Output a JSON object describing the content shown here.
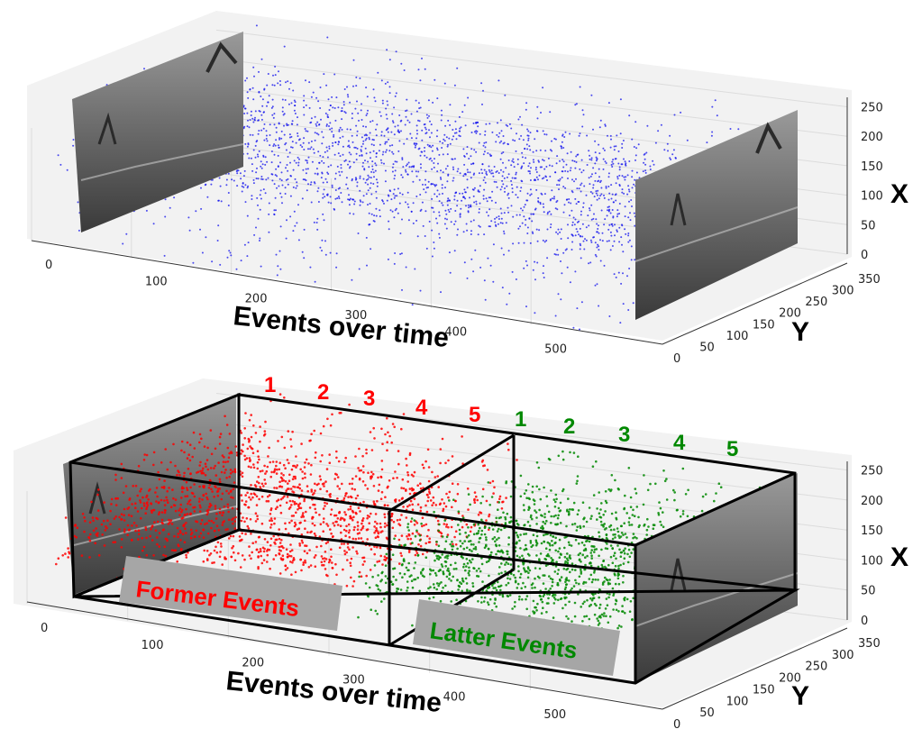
{
  "chart_data": [
    {
      "type": "scatter",
      "projection": "3d",
      "xlabel": "Events over time",
      "ylabel": "Y",
      "zlabel": "X",
      "x_ticks": [
        0,
        100,
        200,
        300,
        400,
        500
      ],
      "y_ticks": [
        0,
        50,
        100,
        150,
        200,
        250,
        300,
        350
      ],
      "z_ticks": [
        0,
        50,
        100,
        150,
        200,
        250
      ],
      "xlim": [
        0,
        600
      ],
      "ylim": [
        0,
        350
      ],
      "zlim": [
        0,
        260
      ],
      "series": [
        {
          "color": "#1010ee",
          "x_range": [
            0,
            560
          ]
        }
      ],
      "frames": [
        "start-frame",
        "end-frame"
      ]
    },
    {
      "type": "scatter",
      "projection": "3d",
      "xlabel": "Events over time",
      "ylabel": "Y",
      "zlabel": "X",
      "x_ticks": [
        0,
        100,
        200,
        300,
        400,
        500
      ],
      "y_ticks": [
        0,
        50,
        100,
        150,
        200,
        250,
        300,
        350
      ],
      "z_ticks": [
        0,
        50,
        100,
        150,
        200,
        250
      ],
      "xlim": [
        0,
        600
      ],
      "ylim": [
        0,
        350
      ],
      "zlim": [
        0,
        260
      ],
      "series": [
        {
          "name": "Former Events",
          "color": "#ff0000",
          "x_range": [
            0,
            300
          ]
        },
        {
          "name": "Latter Events",
          "color": "#008800",
          "x_range": [
            300,
            560
          ]
        }
      ],
      "segment_labels": {
        "former": [
          "1",
          "2",
          "3",
          "4",
          "5"
        ],
        "latter": [
          "1",
          "2",
          "3",
          "4",
          "5"
        ]
      },
      "frames": [
        "start-frame",
        "end-frame"
      ]
    }
  ],
  "colors": {
    "blue_events": "#1010ee",
    "former_events": "#ff0000",
    "latter_events": "#008800",
    "label_box": "#a6a6a6"
  }
}
